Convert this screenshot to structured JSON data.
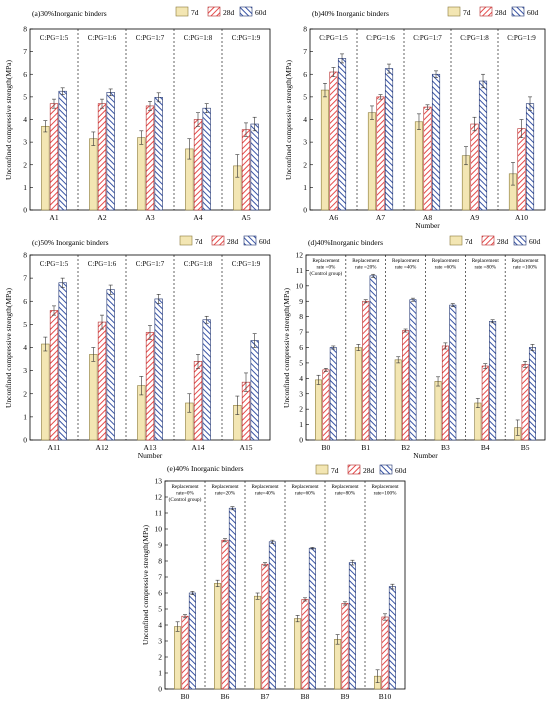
{
  "legend": [
    "7d",
    "28d",
    "60d"
  ],
  "colors": {
    "7d": "#f3e6b3",
    "28d": "#e64b4b",
    "60d": "#3a55a6"
  },
  "chart_data": [
    {
      "type": "bar",
      "title": "(a)30%Inorganic binders",
      "xlabel": "",
      "ylabel": "Unconfined compressive strength(MPa)",
      "ylim": [
        0,
        8
      ],
      "yticks": [
        0,
        1,
        2,
        3,
        4,
        5,
        6,
        7,
        8
      ],
      "categories": [
        "A1",
        "A2",
        "A3",
        "A4",
        "A5"
      ],
      "group_labels": [
        "C:PG=1:5",
        "C:PG=1:6",
        "C:PG=1:7",
        "C:PG=1:8",
        "C:PG=1:9"
      ],
      "group_labels_small": false,
      "series": [
        {
          "name": "7d",
          "values": [
            3.7,
            3.15,
            3.2,
            2.7,
            1.95
          ],
          "errors": [
            0.25,
            0.3,
            0.3,
            0.45,
            0.5
          ]
        },
        {
          "name": "28d",
          "values": [
            4.7,
            4.7,
            4.6,
            4.0,
            3.55
          ],
          "errors": [
            0.2,
            0.2,
            0.2,
            0.3,
            0.3
          ]
        },
        {
          "name": "60d",
          "values": [
            5.25,
            5.2,
            4.98,
            4.5,
            3.8
          ],
          "errors": [
            0.15,
            0.15,
            0.2,
            0.2,
            0.3
          ]
        }
      ]
    },
    {
      "type": "bar",
      "title": "(b)40% Inorganic binders",
      "xlabel": "Number",
      "ylabel": "Unconfined compressive strength(MPa)",
      "ylim": [
        0,
        8
      ],
      "yticks": [
        0,
        1,
        2,
        3,
        4,
        5,
        6,
        7,
        8
      ],
      "categories": [
        "A6",
        "A7",
        "A8",
        "A9",
        "A10"
      ],
      "group_labels": [
        "C:PG=1:5",
        "C:PG=1:6",
        "C:PG=1:7",
        "C:PG=1:8",
        "C:PG=1:9"
      ],
      "group_labels_small": false,
      "series": [
        {
          "name": "7d",
          "values": [
            5.3,
            4.3,
            3.9,
            2.4,
            1.6
          ],
          "errors": [
            0.3,
            0.3,
            0.35,
            0.4,
            0.5
          ]
        },
        {
          "name": "28d",
          "values": [
            6.1,
            5.0,
            4.55,
            3.8,
            3.6
          ],
          "errors": [
            0.2,
            0.1,
            0.1,
            0.3,
            0.4
          ]
        },
        {
          "name": "60d",
          "values": [
            6.7,
            6.25,
            6.0,
            5.7,
            4.7
          ],
          "errors": [
            0.2,
            0.2,
            0.15,
            0.3,
            0.3
          ]
        }
      ]
    },
    {
      "type": "bar",
      "title": "(c)50% Inorganic binders",
      "xlabel": "Number",
      "ylabel": "Unconfined compressive strength(MPa)",
      "ylim": [
        0,
        8
      ],
      "yticks": [
        0,
        1,
        2,
        3,
        4,
        5,
        6,
        7,
        8
      ],
      "categories": [
        "A11",
        "A12",
        "A13",
        "A14",
        "A15"
      ],
      "group_labels": [
        "C:PG=1:5",
        "C:PG=1:6",
        "C:PG=1:7",
        "C:PG=1:8",
        "C:PG=1:9"
      ],
      "group_labels_small": false,
      "series": [
        {
          "name": "7d",
          "values": [
            4.15,
            3.7,
            2.35,
            1.6,
            1.5
          ],
          "errors": [
            0.3,
            0.3,
            0.4,
            0.4,
            0.4
          ]
        },
        {
          "name": "28d",
          "values": [
            5.6,
            5.1,
            4.65,
            3.4,
            2.5
          ],
          "errors": [
            0.2,
            0.3,
            0.3,
            0.3,
            0.4
          ]
        },
        {
          "name": "60d",
          "values": [
            6.8,
            6.5,
            6.1,
            5.2,
            4.3
          ],
          "errors": [
            0.2,
            0.2,
            0.2,
            0.15,
            0.3
          ]
        }
      ]
    },
    {
      "type": "bar",
      "title": "(d)40%Inorganic binders",
      "xlabel": "Number",
      "ylabel": "Unconfined compressive strength(MPa)",
      "ylim": [
        0,
        12
      ],
      "yticks": [
        0,
        1,
        2,
        3,
        4,
        5,
        6,
        7,
        8,
        9,
        10,
        11,
        12
      ],
      "categories": [
        "B0",
        "B1",
        "B2",
        "B3",
        "B4",
        "B5"
      ],
      "group_labels": [
        [
          "Replacement",
          "rate =0%",
          "(Control group)"
        ],
        [
          "Replacement",
          "rate =20%"
        ],
        [
          "Replacement",
          "rate =40%"
        ],
        [
          "Replacement",
          "rate =60%"
        ],
        [
          "Replacement",
          "rate =80%"
        ],
        [
          "Replacement",
          "rate =100%"
        ]
      ],
      "group_labels_small": true,
      "series": [
        {
          "name": "7d",
          "values": [
            3.9,
            6.0,
            5.2,
            3.8,
            2.4,
            0.8
          ],
          "errors": [
            0.3,
            0.2,
            0.2,
            0.3,
            0.3,
            0.5
          ]
        },
        {
          "name": "28d",
          "values": [
            4.55,
            9.0,
            7.1,
            6.1,
            4.8,
            4.9
          ],
          "errors": [
            0.1,
            0.1,
            0.1,
            0.2,
            0.15,
            0.2
          ]
        },
        {
          "name": "60d",
          "values": [
            6.0,
            10.65,
            9.1,
            8.75,
            7.7,
            6.0
          ],
          "errors": [
            0.1,
            0.1,
            0.1,
            0.1,
            0.1,
            0.2
          ]
        }
      ]
    },
    {
      "type": "bar",
      "title": "(e)40% Inorganic binders",
      "xlabel": "Number",
      "ylabel": "Unconfined compressive strength(MPa)",
      "ylim": [
        0,
        13
      ],
      "yticks": [
        0,
        1,
        2,
        3,
        4,
        5,
        6,
        7,
        8,
        9,
        10,
        11,
        12,
        13
      ],
      "categories": [
        "B0",
        "B6",
        "B7",
        "B8",
        "B9",
        "B10"
      ],
      "group_labels": [
        [
          "Replacement",
          "rate=0%",
          "(Control group)"
        ],
        [
          "Replacement",
          "rate=20%"
        ],
        [
          "Replacement",
          "rate=40%"
        ],
        [
          "Replacement",
          "rate=60%"
        ],
        [
          "Replacement",
          "rate=80%"
        ],
        [
          "Replacement",
          "rate=100%"
        ]
      ],
      "group_labels_small": true,
      "series": [
        {
          "name": "7d",
          "values": [
            3.9,
            6.6,
            5.8,
            4.4,
            3.1,
            0.8
          ],
          "errors": [
            0.3,
            0.2,
            0.2,
            0.2,
            0.3,
            0.4
          ]
        },
        {
          "name": "28d",
          "values": [
            4.55,
            9.3,
            7.8,
            5.6,
            5.35,
            4.5
          ],
          "errors": [
            0.1,
            0.1,
            0.1,
            0.1,
            0.1,
            0.2
          ]
        },
        {
          "name": "60d",
          "values": [
            6.0,
            11.3,
            9.2,
            8.8,
            7.9,
            6.4
          ],
          "errors": [
            0.1,
            0.1,
            0.1,
            0.05,
            0.15,
            0.15
          ]
        }
      ]
    }
  ]
}
